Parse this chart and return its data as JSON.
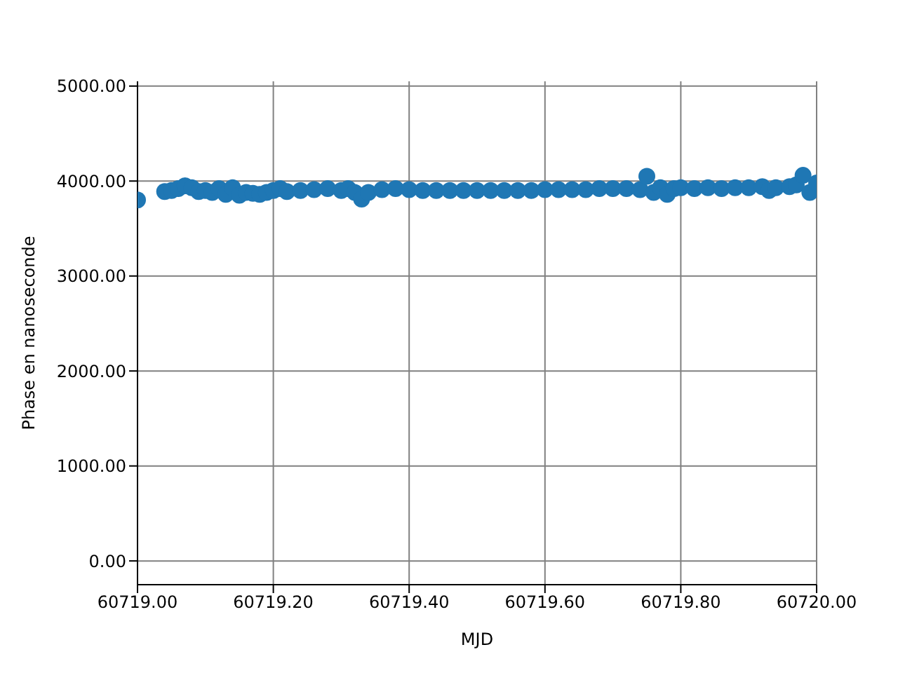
{
  "chart_data": {
    "type": "scatter",
    "xlabel": "MJD",
    "ylabel": "Phase en nanoseconde",
    "x": [
      60719.0,
      60719.04,
      60719.05,
      60719.06,
      60719.07,
      60719.08,
      60719.09,
      60719.1,
      60719.11,
      60719.12,
      60719.13,
      60719.14,
      60719.15,
      60719.16,
      60719.17,
      60719.18,
      60719.19,
      60719.2,
      60719.21,
      60719.22,
      60719.24,
      60719.26,
      60719.28,
      60719.3,
      60719.31,
      60719.32,
      60719.33,
      60719.34,
      60719.36,
      60719.38,
      60719.4,
      60719.42,
      60719.44,
      60719.46,
      60719.48,
      60719.5,
      60719.52,
      60719.54,
      60719.56,
      60719.58,
      60719.6,
      60719.62,
      60719.64,
      60719.66,
      60719.68,
      60719.7,
      60719.72,
      60719.74,
      60719.75,
      60719.76,
      60719.77,
      60719.78,
      60719.79,
      60719.8,
      60719.82,
      60719.84,
      60719.86,
      60719.88,
      60719.9,
      60719.92,
      60719.93,
      60719.94,
      60719.96,
      60719.97,
      60719.98,
      60719.99,
      60720.0
    ],
    "values": [
      3800,
      3890,
      3900,
      3920,
      3950,
      3930,
      3890,
      3900,
      3880,
      3920,
      3860,
      3930,
      3850,
      3880,
      3870,
      3860,
      3880,
      3900,
      3920,
      3890,
      3900,
      3910,
      3920,
      3900,
      3920,
      3880,
      3810,
      3880,
      3910,
      3920,
      3910,
      3900,
      3900,
      3900,
      3900,
      3900,
      3900,
      3900,
      3900,
      3900,
      3910,
      3910,
      3910,
      3910,
      3920,
      3920,
      3920,
      3910,
      4050,
      3880,
      3930,
      3860,
      3920,
      3930,
      3920,
      3930,
      3920,
      3930,
      3930,
      3940,
      3900,
      3930,
      3940,
      3960,
      4060,
      3880,
      3980
    ],
    "color": "#1f77b4",
    "marker": "circle",
    "xlim": [
      60719.0,
      60720.0
    ],
    "xticks": [
      {
        "value": 60719.0,
        "label": "60719.00"
      },
      {
        "value": 60719.2,
        "label": "60719.20"
      },
      {
        "value": 60719.4,
        "label": "60719.40"
      },
      {
        "value": 60719.6,
        "label": "60719.60"
      },
      {
        "value": 60719.8,
        "label": "60719.80"
      },
      {
        "value": 60720.0,
        "label": "60720.00"
      }
    ],
    "ylim": [
      -250,
      5050
    ],
    "yticks": [
      {
        "value": 0,
        "label": "0.00"
      },
      {
        "value": 1000,
        "label": "1000.00"
      },
      {
        "value": 2000,
        "label": "2000.00"
      },
      {
        "value": 3000,
        "label": "3000.00"
      },
      {
        "value": 4000,
        "label": "4000.00"
      },
      {
        "value": 5000,
        "label": "5000.00"
      }
    ],
    "grid": true
  }
}
